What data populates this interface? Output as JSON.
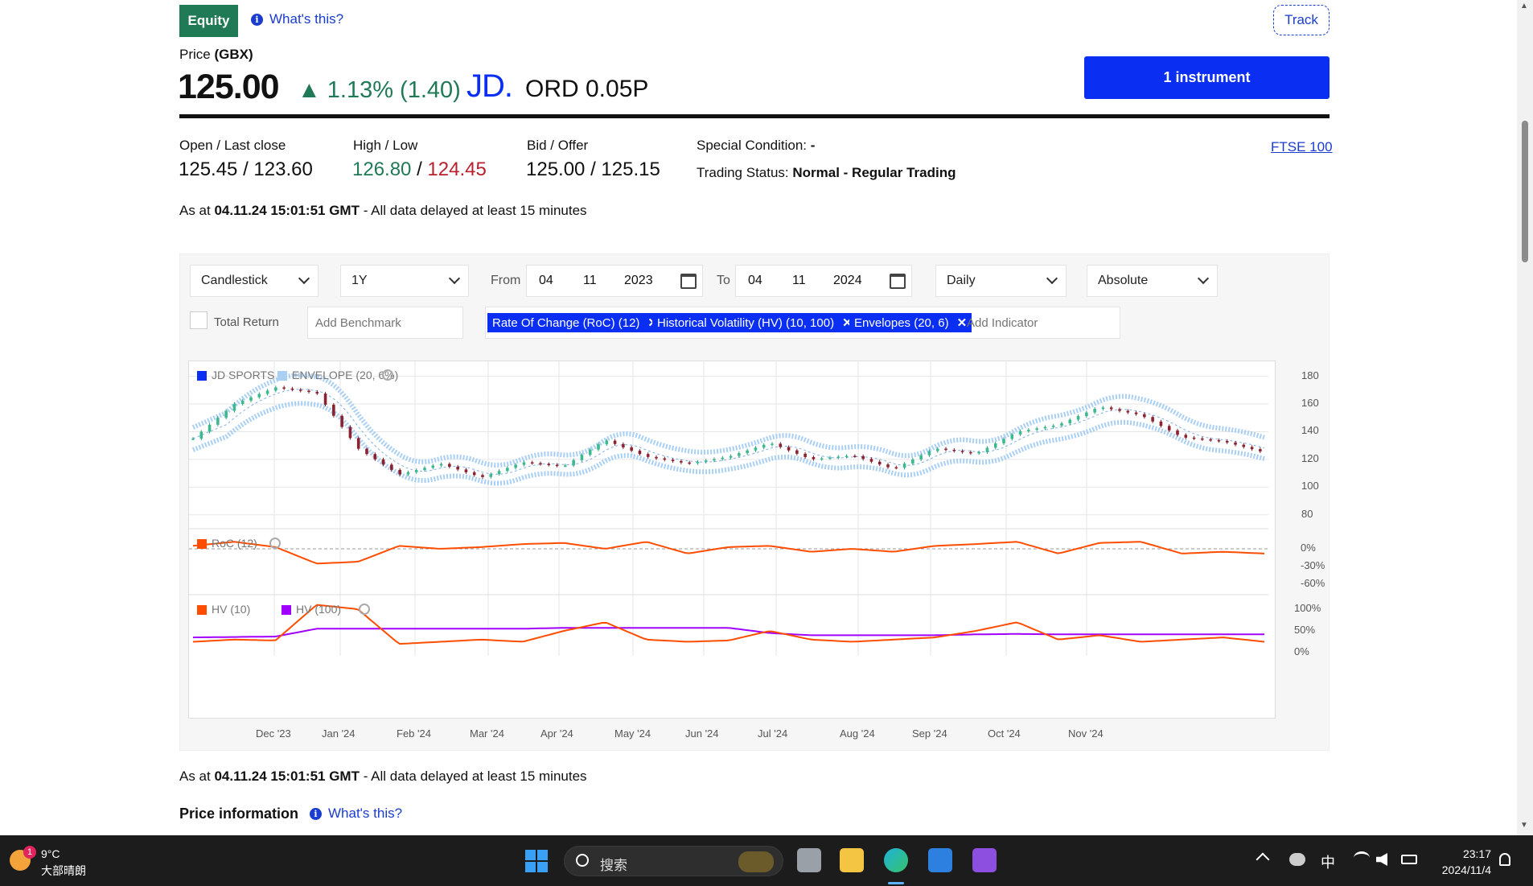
{
  "header": {
    "badge": "Equity",
    "whats_this": "What's this?",
    "track": "Track",
    "instrument_button": "1 instrument"
  },
  "price": {
    "label_prefix": "Price ",
    "currency": "(GBX)",
    "value": "125.00",
    "change": "▲ 1.13% (1.40)",
    "logo": "JD.",
    "security_name": "ORD 0.05P"
  },
  "stats": {
    "open_last_label": "Open / Last close",
    "open_last_value": "125.45 / 123.60",
    "high_low_label": "High / Low",
    "high": "126.80",
    "separator": " / ",
    "low": "124.45",
    "bid_offer_label": "Bid / Offer",
    "bid_offer_value": "125.00 / 125.15",
    "special_condition_label": "Special Condition: ",
    "special_condition_value": "-",
    "trading_status_label": "Trading Status: ",
    "trading_status_value": "Normal - Regular Trading",
    "index_link": "FTSE 100"
  },
  "as_at": {
    "prefix": "As at ",
    "timestamp": "04.11.24 15:01:51 GMT",
    "suffix": " - All data delayed at least 15 minutes"
  },
  "controls": {
    "chart_type": "Candlestick",
    "period": "1Y",
    "from_label": "From",
    "from_day": "04",
    "from_month": "11",
    "from_year": "2023",
    "to_label": "To",
    "to_day": "04",
    "to_month": "11",
    "to_year": "2024",
    "interval": "Daily",
    "scale": "Absolute",
    "total_return": "Total Return",
    "benchmark_placeholder": "Add Benchmark",
    "indicator_placeholder": "Add Indicator",
    "indicators": [
      "Rate Of Change (RoC) (12)",
      "Historical Volatility (HV) (10, 100)",
      "Envelopes (20, 6)"
    ]
  },
  "chart_data": {
    "type": "candlestick",
    "legend": [
      {
        "name": "JD SPORTS",
        "color": "#0a2ff2"
      },
      {
        "name": "ENVELOPE (20, 6%)",
        "color": "#a9cff2"
      }
    ],
    "x_ticks": [
      "Dec '23",
      "Jan '24",
      "Feb '24",
      "Mar '24",
      "Apr '24",
      "May '24",
      "Jun '24",
      "Jul '24",
      "Aug '24",
      "Sep '24",
      "Oct '24",
      "Nov '24"
    ],
    "price_axis": {
      "ticks": [
        "180",
        "160",
        "140",
        "120",
        "100",
        "80"
      ],
      "ylim": [
        70,
        185
      ]
    },
    "price_series": [
      {
        "month": "Nov '23",
        "value": 135
      },
      {
        "month": "Dec '23",
        "value": 160
      },
      {
        "month": "mid Dec '23",
        "value": 172
      },
      {
        "month": "late Dec '23",
        "value": 168
      },
      {
        "month": "Jan '24",
        "value": 128
      },
      {
        "month": "mid Jan '24",
        "value": 109
      },
      {
        "month": "Feb '24",
        "value": 117
      },
      {
        "month": "mid Feb '24",
        "value": 107
      },
      {
        "month": "Mar '24",
        "value": 118
      },
      {
        "month": "mid Mar '24",
        "value": 115
      },
      {
        "month": "Apr '24",
        "value": 134
      },
      {
        "month": "mid Apr '24",
        "value": 122
      },
      {
        "month": "May '24",
        "value": 117
      },
      {
        "month": "mid May '24",
        "value": 122
      },
      {
        "month": "Jun '24",
        "value": 132
      },
      {
        "month": "mid Jun '24",
        "value": 120
      },
      {
        "month": "Jul '24",
        "value": 123
      },
      {
        "month": "mid Jul '24",
        "value": 113
      },
      {
        "month": "Aug '24",
        "value": 128
      },
      {
        "month": "mid Aug '24",
        "value": 124
      },
      {
        "month": "Sep '24",
        "value": 140
      },
      {
        "month": "mid Sep '24",
        "value": 145
      },
      {
        "month": "late Sep '24",
        "value": 158
      },
      {
        "month": "Oct '24",
        "value": 152
      },
      {
        "month": "mid Oct '24",
        "value": 136
      },
      {
        "month": "late Oct '24",
        "value": 133
      },
      {
        "month": "Nov '24",
        "value": 125
      }
    ],
    "roc_panel": {
      "legend": "RoC (12)",
      "color": "#ff4d00",
      "ticks": [
        "0%",
        "-30%",
        "-60%"
      ],
      "values": [
        5,
        12,
        3,
        -25,
        -22,
        5,
        0,
        3,
        8,
        10,
        0,
        12,
        -8,
        3,
        5,
        -5,
        0,
        -5,
        5,
        8,
        12,
        -8,
        10,
        12,
        -8,
        -5,
        -8
      ]
    },
    "hv_panel": {
      "legend": [
        {
          "name": "HV (10)",
          "color": "#ff4d00"
        },
        {
          "name": "HV (100)",
          "color": "#a100ff"
        }
      ],
      "ticks": [
        "100%",
        "50%",
        "0%"
      ],
      "hv10": [
        25,
        30,
        28,
        110,
        100,
        20,
        25,
        30,
        25,
        50,
        70,
        30,
        25,
        28,
        50,
        30,
        25,
        30,
        35,
        50,
        70,
        30,
        40,
        25,
        30,
        35,
        25
      ],
      "hv100": [
        35,
        36,
        37,
        55,
        55,
        55,
        55,
        55,
        55,
        57,
        57,
        57,
        57,
        57,
        45,
        40,
        40,
        40,
        40,
        42,
        43,
        42,
        42,
        42,
        42,
        42,
        42
      ]
    }
  },
  "footer": {
    "price_information": "Price information",
    "whats_this": "What's this?"
  },
  "taskbar": {
    "weather_temp": "9°C",
    "weather_text": "大部晴朗",
    "weather_badge": "1",
    "search_placeholder": "搜索",
    "ime": "中",
    "time": "23:17",
    "date": "2024/11/4"
  }
}
